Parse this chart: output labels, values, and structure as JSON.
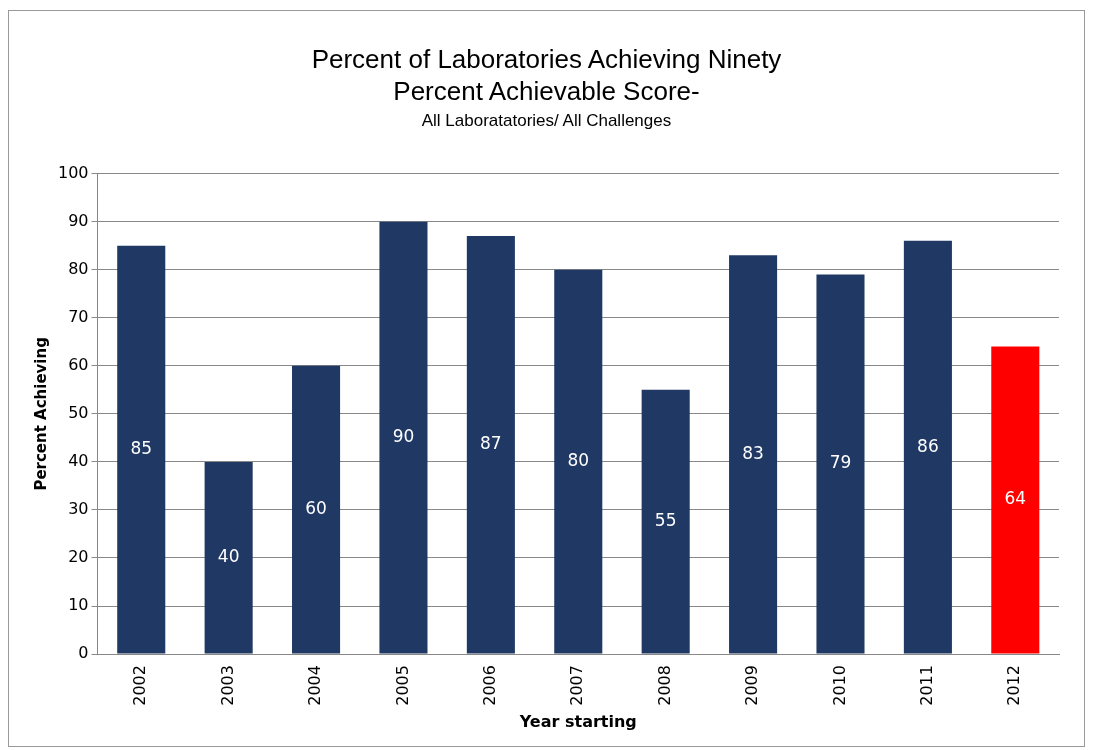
{
  "chart_data": {
    "type": "bar",
    "title": "Percent of Laboratories Achieving Ninety Percent Achievable Score-",
    "subtitle": "All Laboratatories/ All Challenges",
    "xlabel": "Year starting",
    "ylabel": "Percent Achieving",
    "categories": [
      "2002",
      "2003",
      "2004",
      "2005",
      "2006",
      "2007",
      "2008",
      "2009",
      "2010",
      "2011",
      "2012"
    ],
    "values": [
      85,
      40,
      60,
      90,
      87,
      80,
      55,
      83,
      79,
      86,
      64
    ],
    "colors": [
      "#1f3864",
      "#1f3864",
      "#1f3864",
      "#1f3864",
      "#1f3864",
      "#1f3864",
      "#1f3864",
      "#1f3864",
      "#1f3864",
      "#1f3864",
      "#ff0000"
    ],
    "ylim": [
      0,
      100
    ],
    "yticks": [
      0,
      10,
      20,
      30,
      40,
      50,
      60,
      70,
      80,
      90,
      100
    ],
    "grid": "y",
    "legend": false,
    "data_labels": true
  }
}
